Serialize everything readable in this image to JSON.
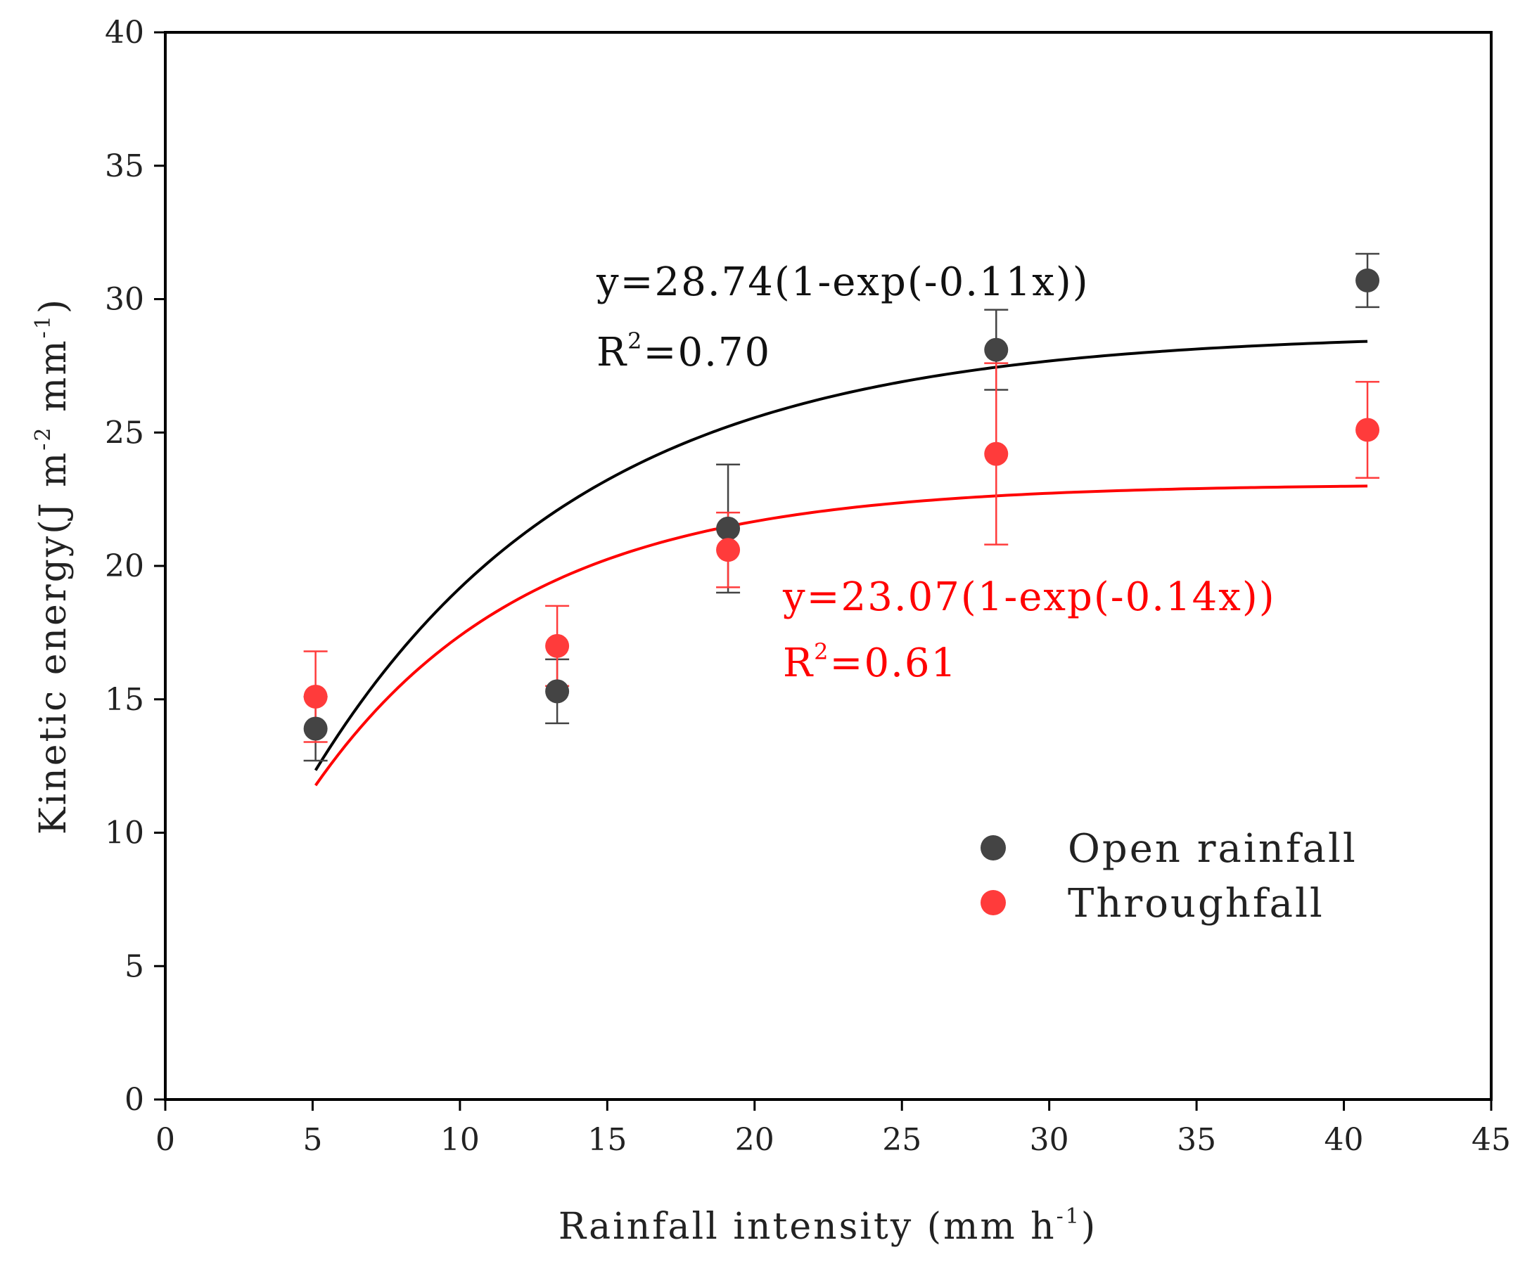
{
  "chart_data": {
    "type": "scatter",
    "title": "",
    "xlabel": "Rainfall intensity (mm h",
    "xlabel_sup": "-1",
    "xlabel_close": ")",
    "ylabel_main": "Kinetic energy(J m",
    "ylabel_sup1": "-2",
    "ylabel_mid": " mm",
    "ylabel_sup2": "-1",
    "ylabel_close": ")",
    "xlim": [
      0,
      45
    ],
    "ylim": [
      0,
      40
    ],
    "x_ticks": [
      0,
      5,
      10,
      15,
      20,
      25,
      30,
      35,
      40,
      45
    ],
    "y_ticks": [
      0,
      5,
      10,
      15,
      20,
      25,
      30,
      35,
      40
    ],
    "grid": false,
    "legend_position": "lower-right",
    "series": [
      {
        "name": "Open rainfall",
        "color": "#444444",
        "line_color": "#000000",
        "points": [
          {
            "x": 5.1,
            "y": 13.9,
            "err": 1.2
          },
          {
            "x": 13.3,
            "y": 15.3,
            "err": 1.2
          },
          {
            "x": 19.1,
            "y": 21.4,
            "err": 2.4
          },
          {
            "x": 28.2,
            "y": 28.1,
            "err": 1.5
          },
          {
            "x": 40.8,
            "y": 30.7,
            "err": 1.0
          }
        ],
        "fit": {
          "a": 28.74,
          "b": 0.11,
          "x_from": 5.1,
          "x_to": 40.8
        },
        "equation": "y=28.74(1-exp(-0.11x))",
        "r2_label": "R",
        "r2_sup": "2",
        "r2_value": "=0.70"
      },
      {
        "name": "Throughfall",
        "color": "#ff3b3b",
        "line_color": "#ff0000",
        "points": [
          {
            "x": 5.1,
            "y": 15.1,
            "err": 1.7
          },
          {
            "x": 13.3,
            "y": 17.0,
            "err": 1.5
          },
          {
            "x": 19.1,
            "y": 20.6,
            "err": 1.4
          },
          {
            "x": 28.2,
            "y": 24.2,
            "err": 3.4
          },
          {
            "x": 40.8,
            "y": 25.1,
            "err": 1.8
          }
        ],
        "fit": {
          "a": 23.07,
          "b": 0.14,
          "x_from": 5.1,
          "x_to": 40.8
        },
        "equation": "y=23.07(1-exp(-0.14x))",
        "r2_label": "R",
        "r2_sup": "2",
        "r2_value": "=0.61"
      }
    ]
  }
}
